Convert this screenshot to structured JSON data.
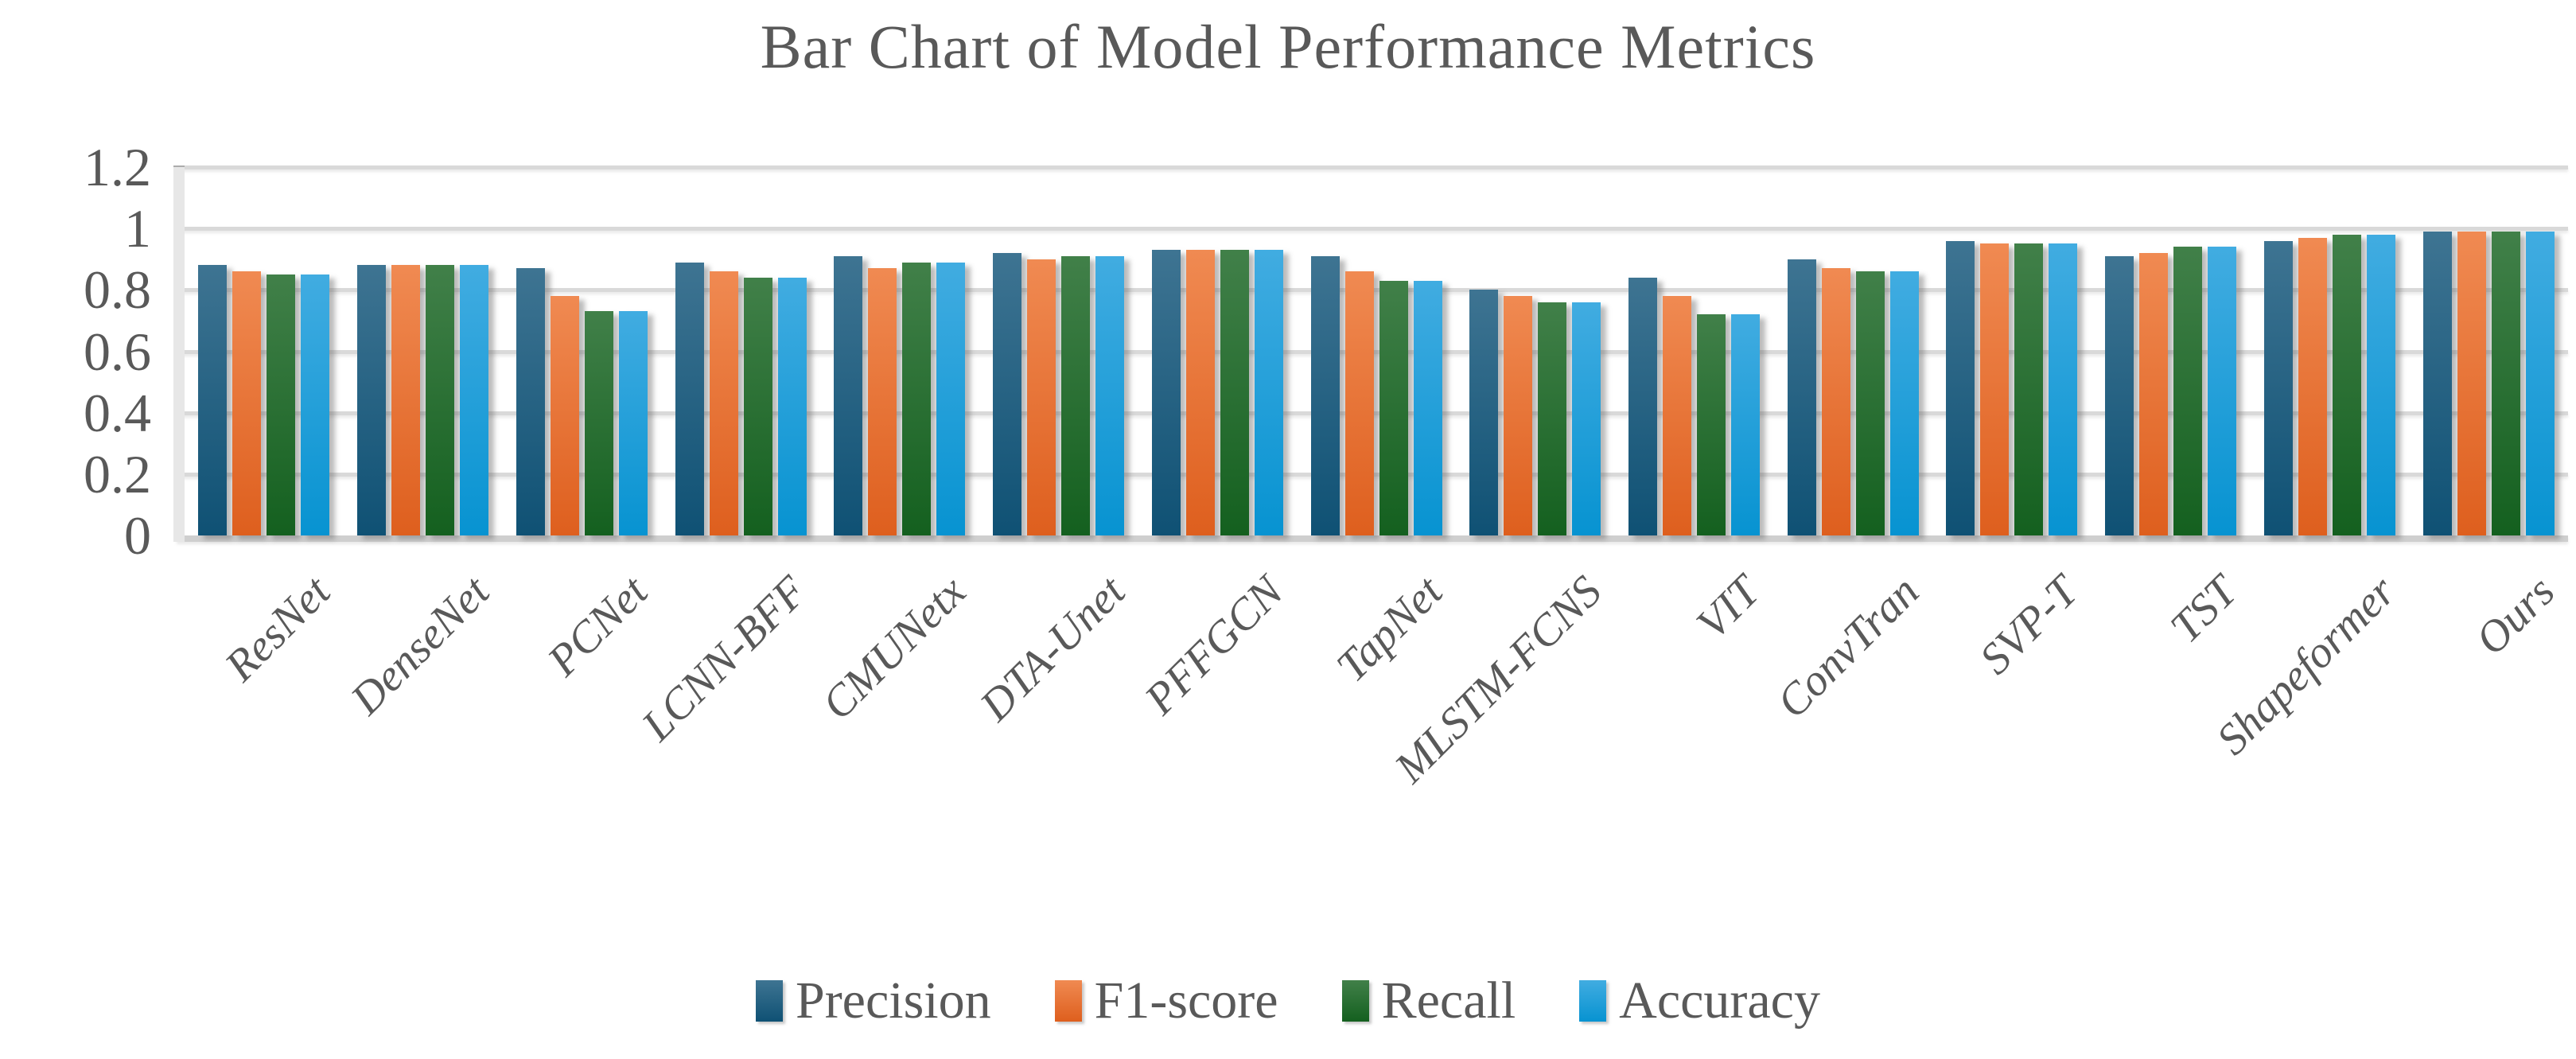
{
  "title": "Bar Chart of Model Performance Metrics",
  "colors": {
    "text": "#595959",
    "gridline": "#D9D9D9",
    "baseline": "#CFCFCF",
    "axis_band": "#E7E7E7",
    "tick": "#ACACAC",
    "background": "#FFFFFF"
  },
  "chart_data": {
    "type": "bar",
    "title": "Bar Chart of Model Performance Metrics",
    "categories": [
      "ResNet",
      "DenseNet",
      "PCNet",
      "LCNN-BFF",
      "CMUNetx",
      "DTA-Unet",
      "PFFGCN",
      "TapNet",
      "MLSTM-FCNS",
      "VIT",
      "ConvTran",
      "SVP-T",
      "TST",
      "Shapeformer",
      "Ours"
    ],
    "series": [
      {
        "name": "Precision",
        "color": "#1F5C7E",
        "gradient_top": "#3E7492",
        "gradient_bottom": "#0F5174",
        "values": [
          0.88,
          0.88,
          0.87,
          0.89,
          0.91,
          0.92,
          0.93,
          0.91,
          0.8,
          0.84,
          0.9,
          0.96,
          0.91,
          0.96,
          0.99
        ]
      },
      {
        "name": "F1-score",
        "color": "#ED7D31",
        "gradient_top": "#F08A52",
        "gradient_bottom": "#DE5F1E",
        "values": [
          0.86,
          0.88,
          0.78,
          0.86,
          0.87,
          0.9,
          0.93,
          0.86,
          0.78,
          0.78,
          0.87,
          0.95,
          0.92,
          0.97,
          0.99
        ]
      },
      {
        "name": "Recall",
        "color": "#217E2F",
        "gradient_top": "#418049",
        "gradient_bottom": "#14601F",
        "values": [
          0.85,
          0.88,
          0.73,
          0.84,
          0.89,
          0.91,
          0.93,
          0.83,
          0.76,
          0.72,
          0.86,
          0.95,
          0.94,
          0.98,
          0.99
        ]
      },
      {
        "name": "Accuracy",
        "color": "#2EA3DC",
        "gradient_top": "#41ACE1",
        "gradient_bottom": "#0793D1",
        "values": [
          0.85,
          0.88,
          0.73,
          0.84,
          0.89,
          0.91,
          0.93,
          0.83,
          0.76,
          0.72,
          0.86,
          0.95,
          0.94,
          0.98,
          0.99
        ]
      }
    ],
    "xlabel": "",
    "ylabel": "",
    "ylim": [
      0,
      1.2
    ],
    "yticks": [
      0,
      0.2,
      0.4,
      0.6,
      0.8,
      1,
      1.2
    ],
    "ytick_labels": [
      "0",
      "0.2",
      "0.4",
      "0.6",
      "0.8",
      "1",
      "1.2"
    ],
    "grid": true,
    "legend_position": "bottom"
  }
}
